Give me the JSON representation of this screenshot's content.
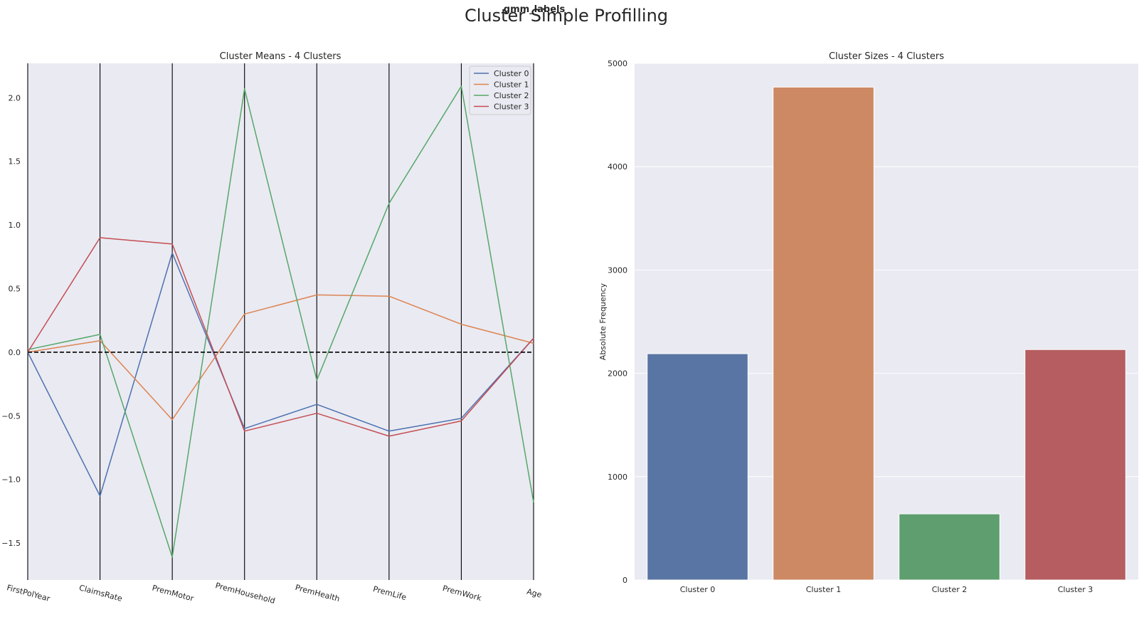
{
  "figure": {
    "suptitle": "Cluster Simple Profilling",
    "overlay_label": "gmm_labels"
  },
  "colors": {
    "plot_bg": "#eaeaf2",
    "grid": "#ffffff",
    "cluster_0": "#4c72b0",
    "cluster_1": "#dd8452",
    "cluster_2": "#55a868",
    "cluster_3": "#c44e52",
    "bar_0": "#5975a4",
    "bar_1": "#cc8963",
    "bar_2": "#5f9e6e",
    "bar_3": "#b55d60"
  },
  "chart_data": [
    {
      "type": "line",
      "subtype": "parallel-coordinates",
      "title": "Cluster Means - 4 Clusters",
      "categories": [
        "FirstPolYear",
        "ClaimsRate",
        "PremMotor",
        "PremHousehold",
        "PremHealth",
        "PremLife",
        "PremWork",
        "Age"
      ],
      "ylim": [
        -1.79,
        2.27
      ],
      "yticks": [
        -1.5,
        -1.0,
        -0.5,
        0.0,
        0.5,
        1.0,
        1.5,
        2.0
      ],
      "ytick_labels": [
        "−1.5",
        "−1.0",
        "−0.5",
        "0.0",
        "0.5",
        "1.0",
        "1.5",
        "2.0"
      ],
      "reference_line": 0,
      "legend_position": "top-right",
      "series": [
        {
          "name": "Cluster 0",
          "color": "#4c72b0",
          "values": [
            0.0,
            -1.13,
            0.78,
            -0.6,
            -0.41,
            -0.62,
            -0.52,
            0.11
          ]
        },
        {
          "name": "Cluster 1",
          "color": "#dd8452",
          "values": [
            0.0,
            0.09,
            -0.53,
            0.3,
            0.45,
            0.44,
            0.22,
            0.07
          ]
        },
        {
          "name": "Cluster 2",
          "color": "#55a868",
          "values": [
            0.02,
            0.14,
            -1.61,
            2.07,
            -0.22,
            1.17,
            2.09,
            -1.18
          ]
        },
        {
          "name": "Cluster 3",
          "color": "#c44e52",
          "values": [
            0.0,
            0.9,
            0.85,
            -0.62,
            -0.48,
            -0.66,
            -0.54,
            0.11
          ]
        }
      ]
    },
    {
      "type": "bar",
      "title": "Cluster Sizes - 4 Clusters",
      "ylabel": "Absolute Frequency",
      "categories": [
        "Cluster 0",
        "Cluster 1",
        "Cluster 2",
        "Cluster 3"
      ],
      "values": [
        2190,
        4770,
        640,
        2230
      ],
      "ylim": [
        0,
        5000
      ],
      "yticks": [
        0,
        1000,
        2000,
        3000,
        4000,
        5000
      ],
      "grid": true
    }
  ]
}
